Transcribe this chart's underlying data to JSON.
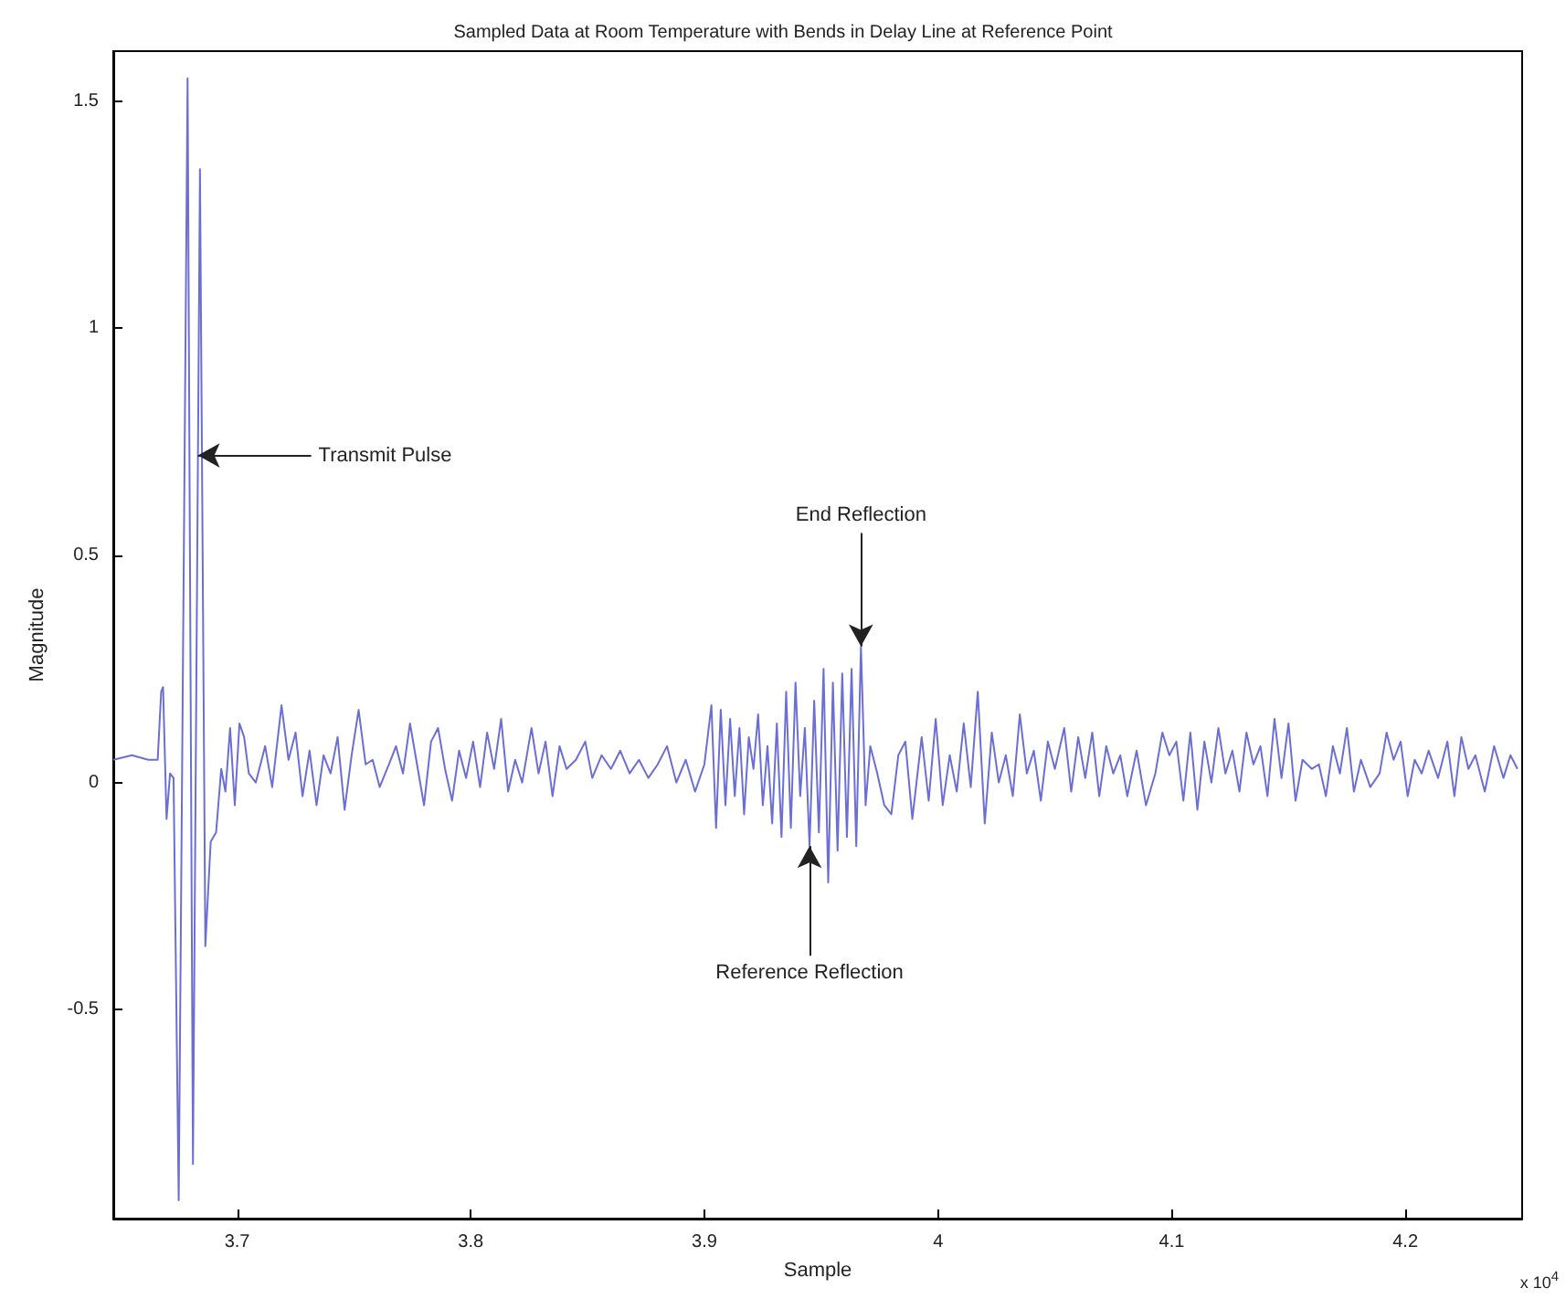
{
  "chart_data": {
    "type": "line",
    "title": "Sampled Data at Room Temperature with Bends in Delay Line at Reference Point",
    "xlabel": "Sample",
    "ylabel": "Magnitude",
    "xlim": [
      3.647,
      4.25
    ],
    "xticks": [
      3.7,
      3.8,
      3.9,
      4,
      4.1,
      4.2
    ],
    "ylim": [
      -0.96,
      1.61
    ],
    "yticks": [
      -0.5,
      0,
      0.5,
      1,
      1.5
    ],
    "grid": false,
    "marker": "none",
    "line_style": "solid",
    "annotations": [
      {
        "text": "Transmit Pulse",
        "x": 3.6832,
        "y": 0.72
      },
      {
        "text": "End Reflection",
        "x": 3.967,
        "y": 0.3
      },
      {
        "text": "Reference Reflection",
        "x": 3.945,
        "y": -0.14
      },
      "x 10$^{4}$"
    ],
    "series": [
      {
        "color": "#6b6fd4",
        "x": [
          3.647,
          3.655,
          3.662,
          3.666,
          3.6675,
          3.6683,
          3.6698,
          3.6713,
          3.6728,
          3.675,
          3.6788,
          3.6811,
          3.6841,
          3.6864,
          3.6887,
          3.691,
          3.6932,
          3.695,
          3.697,
          3.699,
          3.701,
          3.703,
          3.705,
          3.708,
          3.712,
          3.715,
          3.719,
          3.722,
          3.725,
          3.728,
          3.731,
          3.734,
          3.737,
          3.74,
          3.743,
          3.746,
          3.749,
          3.752,
          3.755,
          3.758,
          3.761,
          3.765,
          3.768,
          3.771,
          3.774,
          3.777,
          3.78,
          3.783,
          3.786,
          3.789,
          3.792,
          3.795,
          3.798,
          3.801,
          3.804,
          3.807,
          3.81,
          3.813,
          3.816,
          3.819,
          3.822,
          3.826,
          3.829,
          3.832,
          3.835,
          3.838,
          3.841,
          3.845,
          3.849,
          3.852,
          3.856,
          3.86,
          3.864,
          3.868,
          3.872,
          3.876,
          3.88,
          3.884,
          3.888,
          3.892,
          3.896,
          3.9,
          3.903,
          3.905,
          3.907,
          3.909,
          3.911,
          3.913,
          3.915,
          3.917,
          3.919,
          3.921,
          3.923,
          3.925,
          3.927,
          3.929,
          3.931,
          3.933,
          3.935,
          3.937,
          3.939,
          3.941,
          3.943,
          3.945,
          3.947,
          3.949,
          3.951,
          3.953,
          3.955,
          3.957,
          3.959,
          3.961,
          3.963,
          3.965,
          3.967,
          3.969,
          3.971,
          3.974,
          3.977,
          3.98,
          3.983,
          3.986,
          3.989,
          3.993,
          3.996,
          3.999,
          4.002,
          4.005,
          4.008,
          4.011,
          4.014,
          4.017,
          4.02,
          4.023,
          4.026,
          4.029,
          4.032,
          4.035,
          4.038,
          4.041,
          4.044,
          4.047,
          4.05,
          4.054,
          4.057,
          4.06,
          4.063,
          4.066,
          4.069,
          4.072,
          4.075,
          4.078,
          4.081,
          4.085,
          4.089,
          4.093,
          4.096,
          4.099,
          4.102,
          4.105,
          4.108,
          4.111,
          4.114,
          4.117,
          4.12,
          4.123,
          4.126,
          4.129,
          4.132,
          4.135,
          4.138,
          4.141,
          4.144,
          4.147,
          4.15,
          4.153,
          4.156,
          4.16,
          4.163,
          4.166,
          4.169,
          4.172,
          4.175,
          4.178,
          4.181,
          4.185,
          4.189,
          4.192,
          4.195,
          4.198,
          4.201,
          4.204,
          4.207,
          4.21,
          4.214,
          4.218,
          4.221,
          4.224,
          4.227,
          4.23,
          4.234,
          4.238,
          4.242,
          4.245,
          4.248
        ],
        "values": [
          0.05,
          0.06,
          0.05,
          0.05,
          0.2,
          0.21,
          -0.08,
          0.02,
          0.01,
          -0.92,
          1.55,
          -0.84,
          1.35,
          -0.36,
          -0.13,
          -0.11,
          0.03,
          -0.02,
          0.12,
          -0.05,
          0.13,
          0.1,
          0.02,
          0.0,
          0.08,
          -0.01,
          0.17,
          0.05,
          0.11,
          -0.03,
          0.07,
          -0.05,
          0.06,
          0.02,
          0.1,
          -0.06,
          0.06,
          0.16,
          0.04,
          0.05,
          -0.01,
          0.04,
          0.08,
          0.02,
          0.13,
          0.04,
          -0.05,
          0.09,
          0.12,
          0.03,
          -0.04,
          0.07,
          0.01,
          0.09,
          -0.01,
          0.11,
          0.03,
          0.14,
          -0.02,
          0.05,
          0.0,
          0.12,
          0.02,
          0.09,
          -0.03,
          0.08,
          0.03,
          0.05,
          0.09,
          0.01,
          0.06,
          0.03,
          0.07,
          0.02,
          0.05,
          0.01,
          0.04,
          0.08,
          0.0,
          0.05,
          -0.02,
          0.04,
          0.17,
          -0.1,
          0.16,
          -0.05,
          0.14,
          -0.03,
          0.12,
          -0.07,
          0.1,
          0.03,
          0.15,
          -0.05,
          0.08,
          -0.09,
          0.13,
          -0.12,
          0.2,
          -0.1,
          0.22,
          -0.03,
          0.12,
          -0.14,
          0.18,
          -0.11,
          0.25,
          -0.22,
          0.22,
          -0.15,
          0.24,
          -0.12,
          0.25,
          -0.14,
          0.3,
          -0.05,
          0.08,
          0.02,
          -0.05,
          -0.07,
          0.06,
          0.09,
          -0.08,
          0.1,
          -0.04,
          0.14,
          -0.05,
          0.06,
          -0.02,
          0.13,
          -0.01,
          0.2,
          -0.09,
          0.11,
          0.0,
          0.06,
          -0.03,
          0.15,
          0.02,
          0.07,
          -0.04,
          0.09,
          0.03,
          0.12,
          -0.02,
          0.1,
          0.01,
          0.11,
          -0.03,
          0.08,
          0.02,
          0.06,
          -0.03,
          0.07,
          -0.05,
          0.02,
          0.11,
          0.06,
          0.09,
          -0.04,
          0.11,
          -0.06,
          0.09,
          0.0,
          0.12,
          0.02,
          0.07,
          -0.02,
          0.11,
          0.04,
          0.08,
          -0.03,
          0.14,
          0.01,
          0.13,
          -0.04,
          0.05,
          0.03,
          0.04,
          -0.03,
          0.08,
          0.02,
          0.12,
          -0.02,
          0.05,
          -0.01,
          0.02,
          0.11,
          0.05,
          0.09,
          -0.03,
          0.05,
          0.02,
          0.07,
          0.01,
          0.09,
          -0.03,
          0.1,
          0.03,
          0.06,
          -0.02,
          0.08,
          0.01,
          0.06,
          0.03
        ]
      }
    ]
  }
}
